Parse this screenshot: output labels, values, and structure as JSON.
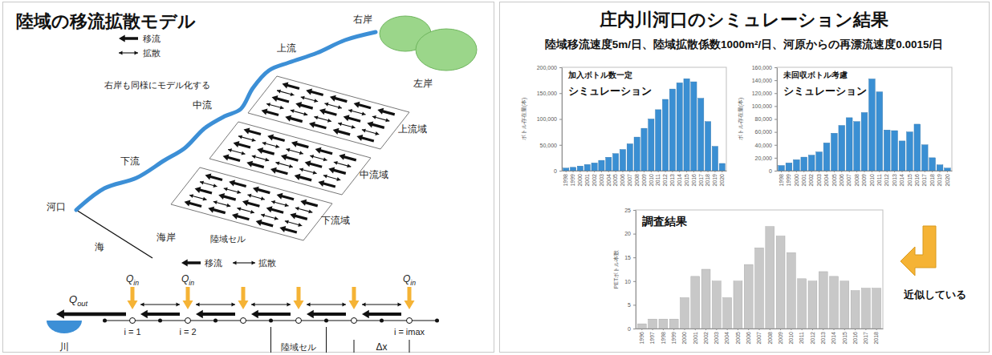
{
  "model_slide": {
    "title": "陸域の移流拡散モデル",
    "legend": {
      "advection": "移流",
      "diffusion": "拡散"
    },
    "note": "右岸も同様にモデル化する",
    "banks": {
      "right": "右岸",
      "left": "左岸"
    },
    "river": {
      "upstream": "上流",
      "midstream": "中流",
      "downstream": "下流",
      "mouth": "河口"
    },
    "zones": [
      "上流域",
      "中流域",
      "下流域"
    ],
    "coast": "海岸",
    "cell": "陸域セル",
    "sea": "海",
    "cell_model": {
      "legend": {
        "advection": "移流",
        "diffusion": "拡散"
      },
      "outflow": {
        "symbol": "Q",
        "subscript": "out"
      },
      "inflow": {
        "symbol": "Q",
        "subscript": "in"
      },
      "index_labels": [
        "i = 1",
        "i = 2",
        "i = imax"
      ],
      "river": "川",
      "cell": "陸域セル",
      "spacing": "Δx"
    }
  },
  "result_slide": {
    "title": "庄内川河口のシミュレーション結果",
    "subtitle": "陸域移流速度5m/日、陸域拡散係数1000m²/日、河原からの再漂流速度0.0015/日",
    "note": "近似している"
  },
  "chart_data": [
    {
      "type": "bar",
      "title": "加入ボトル数一定",
      "subtitle": "シミュレーション",
      "y_label": "ボトル存在量(本)",
      "categories": [
        "1998",
        "1999",
        "2000",
        "2001",
        "2002",
        "2003",
        "2004",
        "2005",
        "2006",
        "2007",
        "2008",
        "2009",
        "2010",
        "2011",
        "2012",
        "2013",
        "2014",
        "2015",
        "2016",
        "2017",
        "2018",
        "2019",
        "2020"
      ],
      "values": [
        5000,
        6500,
        9000,
        12000,
        15000,
        20000,
        26000,
        33000,
        41000,
        52000,
        65000,
        82000,
        100000,
        118000,
        138000,
        158000,
        170000,
        178000,
        172000,
        140000,
        95000,
        47000,
        14000
      ],
      "color": "#3a8fd3",
      "ylim": [
        0,
        200000
      ],
      "yticks": [
        0,
        {
          "value": 50000,
          "label": "50,000"
        },
        {
          "value": 100000,
          "label": "100,000"
        },
        {
          "value": 150000,
          "label": "150,000"
        },
        {
          "value": 200000,
          "label": "200,000"
        }
      ],
      "grid": false
    },
    {
      "type": "bar",
      "title": "未回収ボトル考慮",
      "subtitle": "シミュレーション",
      "y_label": "ボトル存在量(本)",
      "categories": [
        "1998",
        "1999",
        "2000",
        "2001",
        "2002",
        "2003",
        "2004",
        "2005",
        "2006",
        "2007",
        "2008",
        "2009",
        "2010",
        "2011",
        "2012",
        "2013",
        "2014",
        "2015",
        "2016",
        "2017",
        "2018",
        "2019",
        "2020"
      ],
      "values": [
        8000,
        12000,
        17000,
        21000,
        24000,
        29000,
        43000,
        58000,
        70000,
        82000,
        76000,
        90000,
        142000,
        122000,
        63000,
        62000,
        46000,
        60000,
        72000,
        40000,
        20000,
        9000,
        4000
      ],
      "color": "#3a8fd3",
      "ylim": [
        0,
        160000
      ],
      "yticks": [
        0,
        {
          "value": 20000,
          "label": "20,000"
        },
        {
          "value": 40000,
          "label": "40,000"
        },
        {
          "value": 60000,
          "label": "60,000"
        },
        {
          "value": 80000,
          "label": "80,000"
        },
        {
          "value": 100000,
          "label": "100,000"
        },
        {
          "value": 120000,
          "label": "120,000"
        },
        {
          "value": 140000,
          "label": "140,000"
        },
        {
          "value": 160000,
          "label": "160,000"
        }
      ],
      "grid": false
    },
    {
      "type": "bar",
      "title": "調査結果",
      "y_label": "PETボトル本数",
      "categories": [
        "1996",
        "1997",
        "1998",
        "1999",
        "2000",
        "2001",
        "2002",
        "2003",
        "2004",
        "2005",
        "2006",
        "2007",
        "2008",
        "2009",
        "2010",
        "2011",
        "2012",
        "2013",
        "2014",
        "2015",
        "2016",
        "2017",
        "2018"
      ],
      "values": [
        1,
        2,
        2,
        2,
        6.5,
        11,
        12.5,
        10,
        6.5,
        10,
        13.5,
        17,
        21.5,
        19.5,
        16,
        10.5,
        10,
        12,
        11,
        10,
        8,
        8.5,
        8.5
      ],
      "color": "#c8c8c8",
      "ylim": [
        0,
        25
      ],
      "yticks": [
        0,
        5,
        10,
        15,
        20,
        25
      ],
      "grid": false
    }
  ]
}
